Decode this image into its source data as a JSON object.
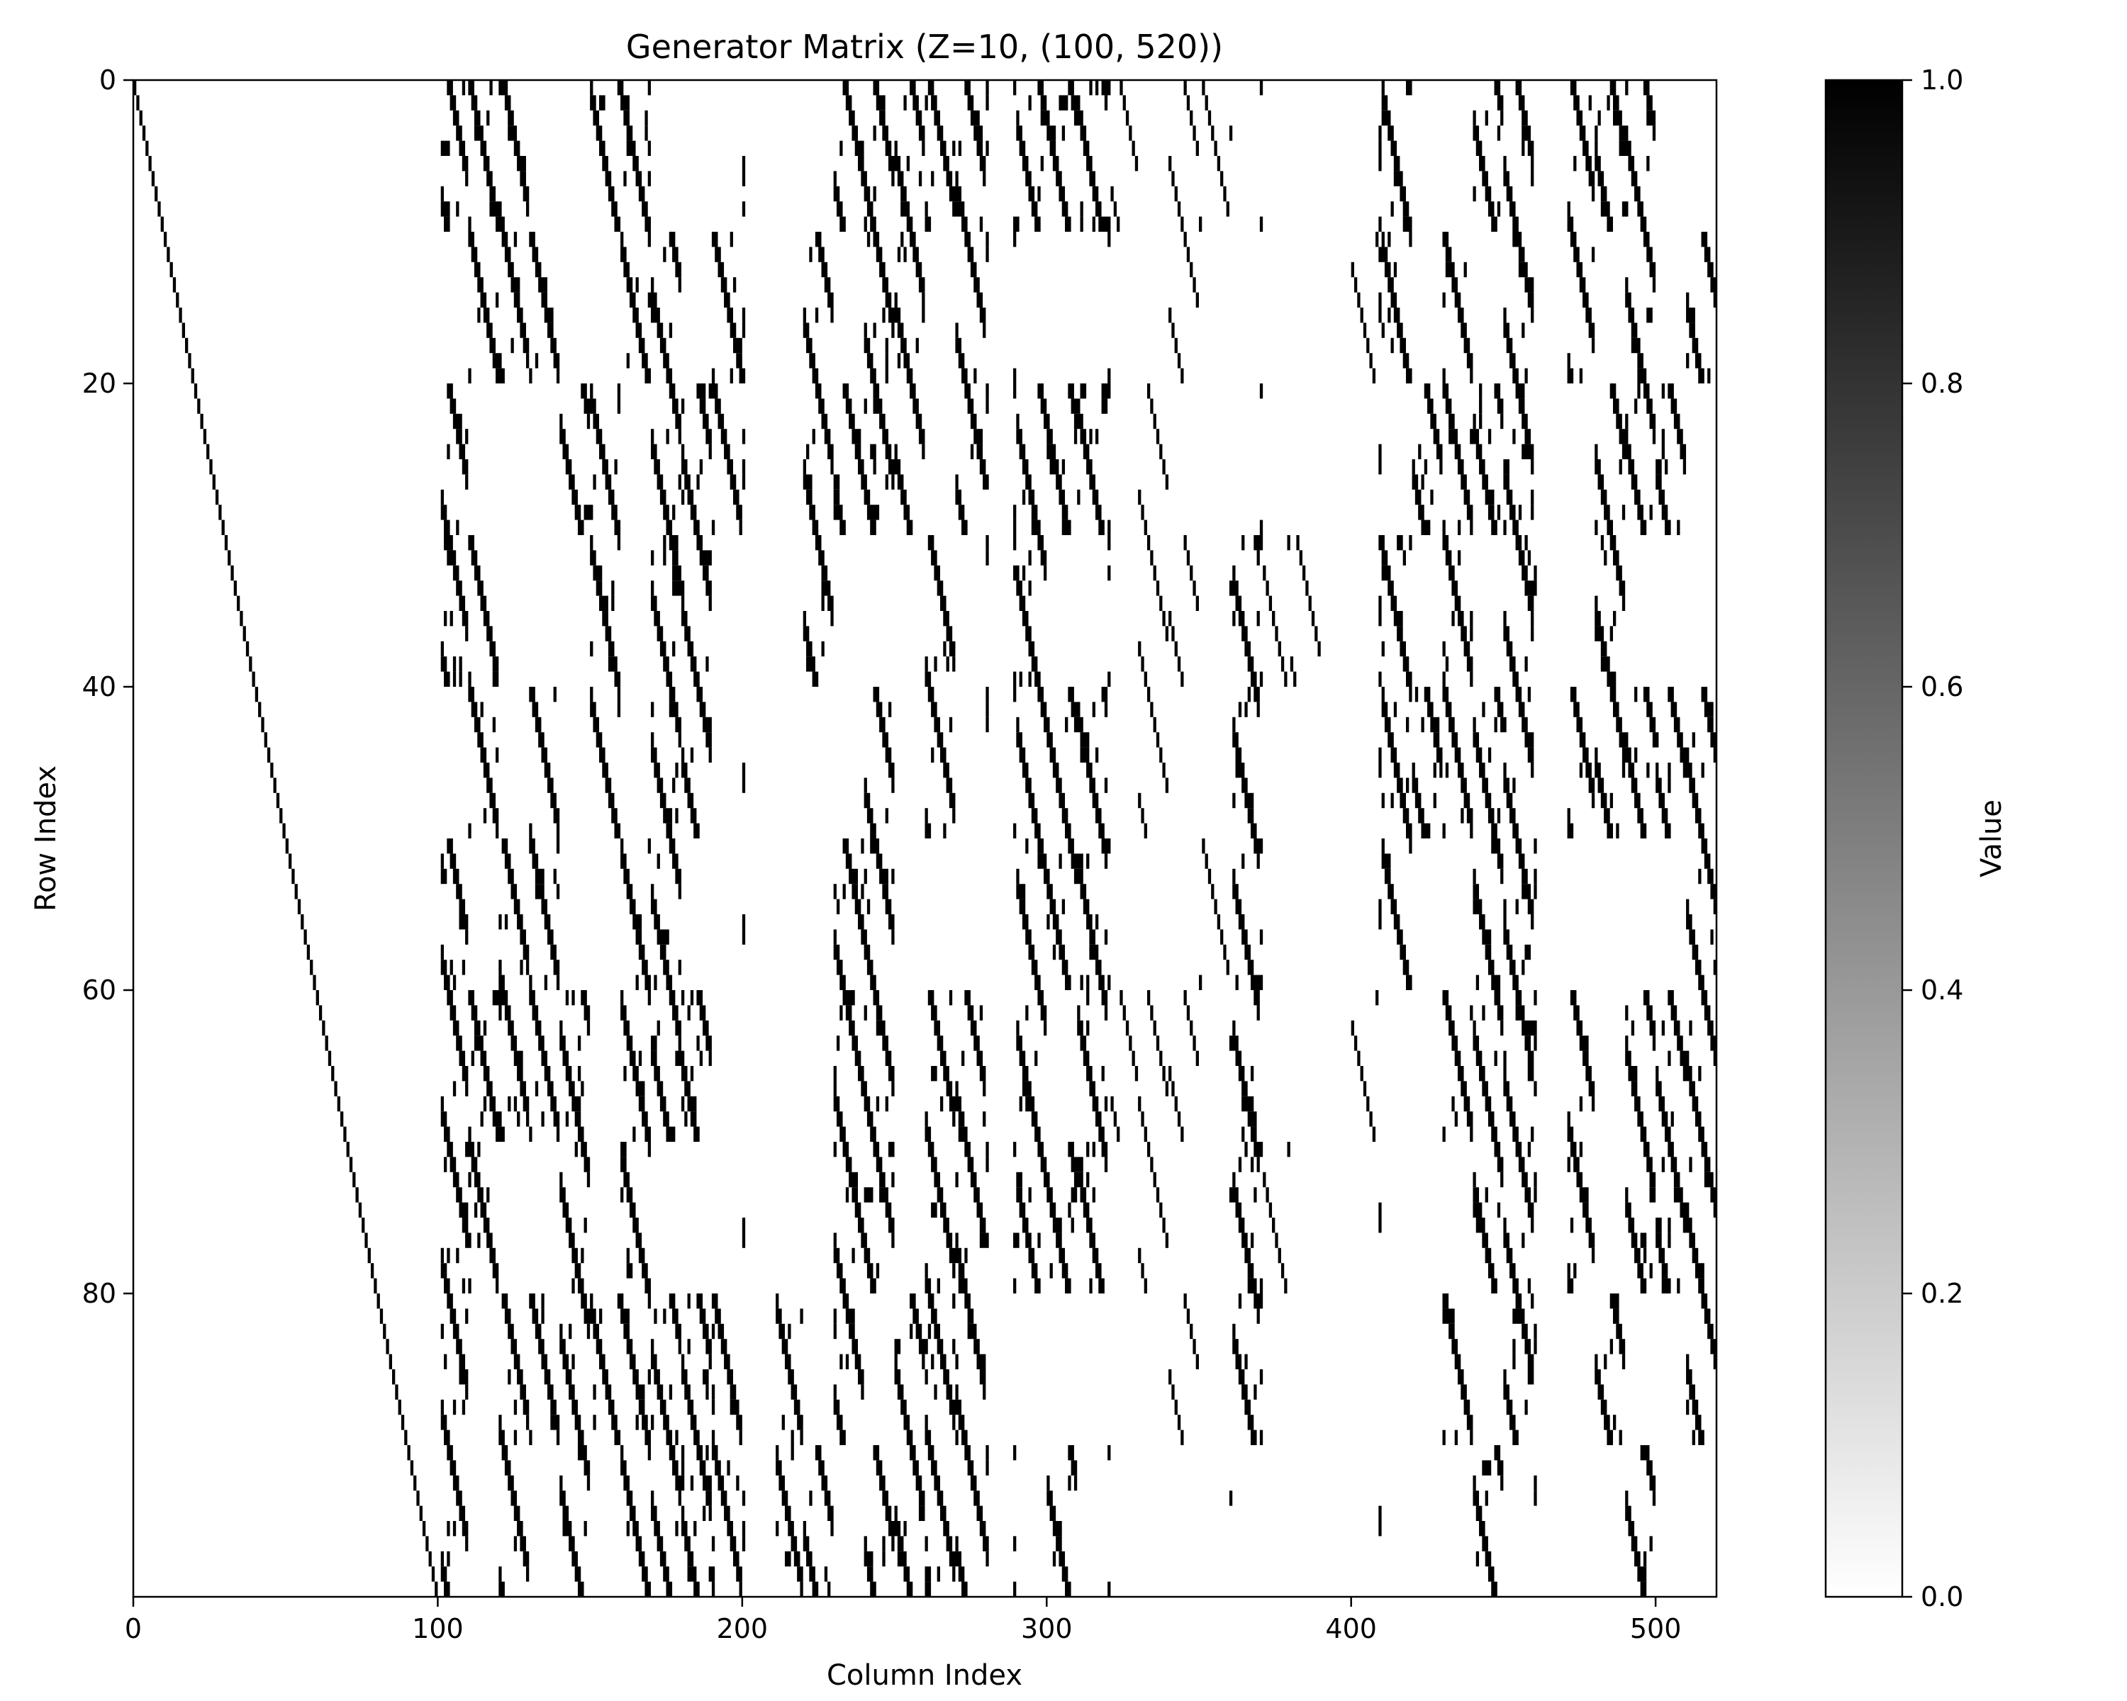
{
  "chart_data": {
    "type": "heatmap",
    "title": "Generator Matrix (Z=10, (100, 520))",
    "xlabel": "Column Index",
    "ylabel": "Row Index",
    "rows": 100,
    "cols": 520,
    "xlim": [
      0,
      520
    ],
    "ylim": [
      100,
      0
    ],
    "xticks": [
      0,
      100,
      200,
      300,
      400,
      500
    ],
    "yticks": [
      0,
      20,
      40,
      60,
      80
    ],
    "colormap": "gray_r",
    "colorbar": {
      "label": "Value",
      "range": [
        0.0,
        1.0
      ],
      "ticks": [
        "0.0",
        "0.2",
        "0.4",
        "0.6",
        "0.8",
        "1.0"
      ],
      "low_color": "#ffffff",
      "high_color": "#000000"
    },
    "structure": {
      "identity_block": {
        "columns": [
          0,
          100
        ],
        "diagonal_value": 1
      },
      "parity_region": {
        "columns": [
          100,
          520
        ],
        "lift_size": 10,
        "value_set": [
          0,
          1
        ],
        "dense_column_bands": [
          [
            101,
            201
          ],
          [
            211,
            281
          ],
          [
            289,
            321
          ],
          [
            361,
            371
          ],
          [
            409,
            461
          ],
          [
            471,
            520
          ]
        ],
        "sparse_column_bands": [
          [
            321,
            361
          ],
          [
            371,
            409
          ]
        ]
      }
    }
  }
}
